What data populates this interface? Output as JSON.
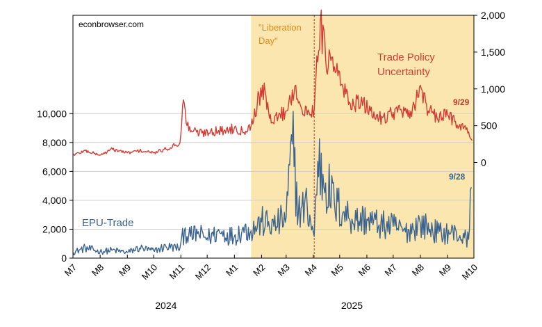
{
  "chart_data": {
    "type": "line",
    "source_label": "econbrowser.com",
    "shade_start": "2025-01-20",
    "shade_label": "\"Liberation Day\"",
    "event_date": "2025-04-02",
    "x_range": [
      "2024-07-01",
      "2025-10-01"
    ],
    "x_ticks": [
      {
        "date": "2024-07-01",
        "label": "M7"
      },
      {
        "date": "2024-08-01",
        "label": "M8"
      },
      {
        "date": "2024-09-01",
        "label": "M9"
      },
      {
        "date": "2024-10-01",
        "label": "M10"
      },
      {
        "date": "2024-11-01",
        "label": "M11"
      },
      {
        "date": "2024-12-01",
        "label": "M12"
      },
      {
        "date": "2025-01-01",
        "label": "M1"
      },
      {
        "date": "2025-02-01",
        "label": "M2"
      },
      {
        "date": "2025-03-01",
        "label": "M3"
      },
      {
        "date": "2025-04-01",
        "label": "M4"
      },
      {
        "date": "2025-05-01",
        "label": "M5"
      },
      {
        "date": "2025-06-01",
        "label": "M6"
      },
      {
        "date": "2025-07-01",
        "label": "M7"
      },
      {
        "date": "2025-08-01",
        "label": "M8"
      },
      {
        "date": "2025-09-01",
        "label": "M9"
      },
      {
        "date": "2025-10-01",
        "label": "M10"
      }
    ],
    "year_labels": [
      {
        "label": "2024",
        "date": "2024-10-15"
      },
      {
        "label": "2025",
        "date": "2025-05-15"
      }
    ],
    "left_axis": {
      "range": [
        0,
        16800
      ],
      "ticks": [
        0,
        2000,
        4000,
        6000,
        8000,
        10000
      ],
      "tick_labels": [
        "0",
        "2,000",
        "4,000",
        "6,000",
        "8,000",
        "10,000"
      ]
    },
    "right_axis": {
      "range": [
        -1300,
        2000
      ],
      "ticks": [
        0,
        500,
        1000,
        1500,
        2000
      ],
      "tick_labels": [
        "0",
        "500",
        "1,000",
        "1,500",
        "2,000"
      ]
    },
    "series": [
      {
        "name": "EPU-Trade",
        "axis": "left",
        "color": "#3a6390",
        "end_label": "9/28",
        "points": [
          [
            "2024-07-01",
            400
          ],
          [
            "2024-07-15",
            700
          ],
          [
            "2024-08-01",
            450
          ],
          [
            "2024-08-15",
            550
          ],
          [
            "2024-09-01",
            400
          ],
          [
            "2024-09-15",
            700
          ],
          [
            "2024-10-01",
            500
          ],
          [
            "2024-10-15",
            800
          ],
          [
            "2024-10-31",
            700
          ],
          [
            "2024-11-05",
            1900
          ],
          [
            "2024-11-12",
            1500
          ],
          [
            "2024-11-20",
            1700
          ],
          [
            "2024-12-01",
            1400
          ],
          [
            "2024-12-15",
            1800
          ],
          [
            "2025-01-01",
            1500
          ],
          [
            "2025-01-10",
            2000
          ],
          [
            "2025-01-20",
            1900
          ],
          [
            "2025-02-01",
            2500
          ],
          [
            "2025-02-15",
            2200
          ],
          [
            "2025-03-01",
            2800
          ],
          [
            "2025-03-08",
            7900
          ],
          [
            "2025-03-15",
            3200
          ],
          [
            "2025-03-25",
            3600
          ],
          [
            "2025-04-02",
            1500
          ],
          [
            "2025-04-06",
            6700
          ],
          [
            "2025-04-15",
            5200
          ],
          [
            "2025-04-25",
            3800
          ],
          [
            "2025-05-05",
            3200
          ],
          [
            "2025-05-20",
            2600
          ],
          [
            "2025-06-01",
            2700
          ],
          [
            "2025-06-15",
            2300
          ],
          [
            "2025-07-01",
            2200
          ],
          [
            "2025-07-15",
            1800
          ],
          [
            "2025-08-01",
            2400
          ],
          [
            "2025-08-12",
            2000
          ],
          [
            "2025-08-25",
            1700
          ],
          [
            "2025-09-05",
            1800
          ],
          [
            "2025-09-20",
            1400
          ],
          [
            "2025-09-25",
            1300
          ],
          [
            "2025-09-28",
            4900
          ]
        ]
      },
      {
        "name": "Trade Policy Uncertainty",
        "axis": "right",
        "color": "#d43a33",
        "end_label": "9/29",
        "points": [
          [
            "2024-07-01",
            100
          ],
          [
            "2024-07-15",
            160
          ],
          [
            "2024-08-01",
            100
          ],
          [
            "2024-08-15",
            180
          ],
          [
            "2024-09-01",
            130
          ],
          [
            "2024-09-15",
            160
          ],
          [
            "2024-10-01",
            130
          ],
          [
            "2024-10-15",
            180
          ],
          [
            "2024-10-31",
            270
          ],
          [
            "2024-11-04",
            850
          ],
          [
            "2024-11-08",
            500
          ],
          [
            "2024-11-15",
            420
          ],
          [
            "2024-11-25",
            400
          ],
          [
            "2024-12-05",
            430
          ],
          [
            "2024-12-20",
            430
          ],
          [
            "2025-01-01",
            470
          ],
          [
            "2025-01-10",
            430
          ],
          [
            "2025-01-20",
            500
          ],
          [
            "2025-02-02",
            1050
          ],
          [
            "2025-02-10",
            600
          ],
          [
            "2025-02-20",
            620
          ],
          [
            "2025-03-01",
            700
          ],
          [
            "2025-03-12",
            1050
          ],
          [
            "2025-03-20",
            650
          ],
          [
            "2025-04-02",
            720
          ],
          [
            "2025-04-05",
            1450
          ],
          [
            "2025-04-09",
            1920
          ],
          [
            "2025-04-15",
            1400
          ],
          [
            "2025-04-25",
            1300
          ],
          [
            "2025-05-05",
            1000
          ],
          [
            "2025-05-12",
            820
          ],
          [
            "2025-05-25",
            800
          ],
          [
            "2025-06-05",
            700
          ],
          [
            "2025-06-15",
            600
          ],
          [
            "2025-07-01",
            680
          ],
          [
            "2025-07-10",
            720
          ],
          [
            "2025-07-20",
            600
          ],
          [
            "2025-08-01",
            1050
          ],
          [
            "2025-08-10",
            700
          ],
          [
            "2025-08-20",
            600
          ],
          [
            "2025-09-01",
            650
          ],
          [
            "2025-09-10",
            560
          ],
          [
            "2025-09-20",
            480
          ],
          [
            "2025-09-29",
            300
          ]
        ]
      }
    ]
  }
}
